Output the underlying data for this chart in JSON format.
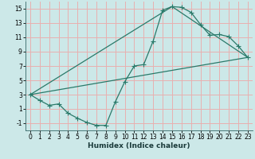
{
  "xlabel": "Humidex (Indice chaleur)",
  "bg_color": "#cce8e8",
  "grid_color": "#e8b0b0",
  "line_color": "#2a7a6a",
  "xlim": [
    -0.5,
    23.5
  ],
  "ylim": [
    -2.0,
    16.0
  ],
  "xticks": [
    0,
    1,
    2,
    3,
    4,
    5,
    6,
    7,
    8,
    9,
    10,
    11,
    12,
    13,
    14,
    15,
    16,
    17,
    18,
    19,
    20,
    21,
    22,
    23
  ],
  "yticks": [
    -1,
    1,
    3,
    5,
    7,
    9,
    11,
    13,
    15
  ],
  "curve1_x": [
    0,
    1,
    2,
    3,
    4,
    5,
    6,
    7,
    8,
    9,
    10,
    11,
    12,
    13,
    14,
    15,
    16,
    17,
    18,
    19,
    20,
    21,
    22,
    23
  ],
  "curve1_y": [
    3.0,
    2.2,
    1.5,
    1.7,
    0.4,
    -0.3,
    -0.9,
    -1.3,
    -1.3,
    2.0,
    4.8,
    7.0,
    7.2,
    10.5,
    14.8,
    15.3,
    15.2,
    14.5,
    12.8,
    11.3,
    11.4,
    11.1,
    9.8,
    8.2
  ],
  "curve2_x": [
    0,
    23
  ],
  "curve2_y": [
    3.0,
    8.2
  ],
  "curve3_x": [
    0,
    15,
    23
  ],
  "curve3_y": [
    3.0,
    15.3,
    8.2
  ],
  "xlabel_fontsize": 6.5,
  "tick_fontsize": 5.5
}
